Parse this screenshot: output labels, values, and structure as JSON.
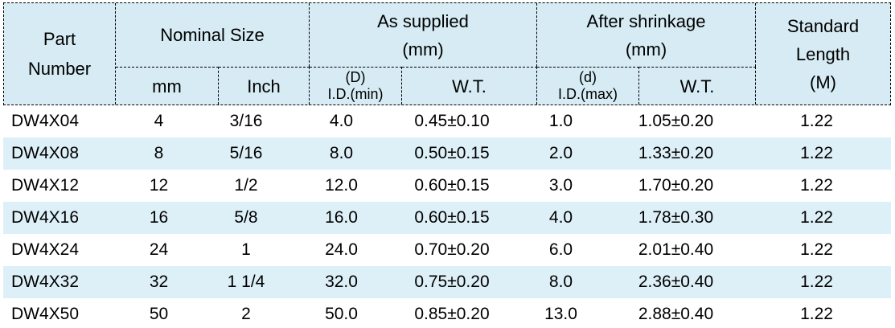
{
  "table": {
    "header": {
      "part_number": {
        "line1": "Part",
        "line2": "Number"
      },
      "nominal_size": "Nominal Size",
      "as_supplied": {
        "line1": "As supplied",
        "line2": "(mm)"
      },
      "after_shrinkage": {
        "line1": "After shrinkage",
        "line2": "(mm)"
      },
      "standard_length": {
        "line1": "Standard",
        "line2": "Length",
        "line3": "(M)"
      },
      "sub": {
        "mm": "mm",
        "inch": "Inch",
        "id_min": {
          "line1": "(D)",
          "line2": "I.D.(min)"
        },
        "wt_supplied": "W.T.",
        "id_max": {
          "line1": "(d)",
          "line2": "I.D.(max)"
        },
        "wt_shrinkage": "W.T."
      }
    },
    "rows": [
      {
        "part": "DW4X04",
        "mm": "4",
        "inch": "3/16",
        "id_min": "4.0",
        "wt_supplied": "0.45±0.10",
        "id_max": "1.0",
        "wt_shrinkage": "1.05±0.20",
        "length": "1.22"
      },
      {
        "part": "DW4X08",
        "mm": "8",
        "inch": "5/16",
        "id_min": "8.0",
        "wt_supplied": "0.50±0.15",
        "id_max": "2.0",
        "wt_shrinkage": "1.33±0.20",
        "length": "1.22"
      },
      {
        "part": "DW4X12",
        "mm": "12",
        "inch": "1/2",
        "id_min": "12.0",
        "wt_supplied": "0.60±0.15",
        "id_max": "3.0",
        "wt_shrinkage": "1.70±0.20",
        "length": "1.22"
      },
      {
        "part": "DW4X16",
        "mm": "16",
        "inch": "5/8",
        "id_min": "16.0",
        "wt_supplied": "0.60±0.15",
        "id_max": "4.0",
        "wt_shrinkage": "1.78±0.30",
        "length": "1.22"
      },
      {
        "part": "DW4X24",
        "mm": "24",
        "inch": "1",
        "id_min": "24.0",
        "wt_supplied": "0.70±0.20",
        "id_max": "6.0",
        "wt_shrinkage": "2.01±0.40",
        "length": "1.22"
      },
      {
        "part": "DW4X32",
        "mm": "32",
        "inch": "1 1/4",
        "id_min": "32.0",
        "wt_supplied": "0.75±0.20",
        "id_max": "8.0",
        "wt_shrinkage": "2.36±0.40",
        "length": "1.22"
      },
      {
        "part": "DW4X50",
        "mm": "50",
        "inch": "2",
        "id_min": "50.0",
        "wt_supplied": "0.85±0.20",
        "id_max": "13.0",
        "wt_shrinkage": "2.88±0.40",
        "length": "1.22"
      }
    ],
    "colors": {
      "header_bg": "#d6ebf3",
      "stripe_bg": "#def0f7",
      "border": "#000000",
      "text": "#000000"
    }
  }
}
